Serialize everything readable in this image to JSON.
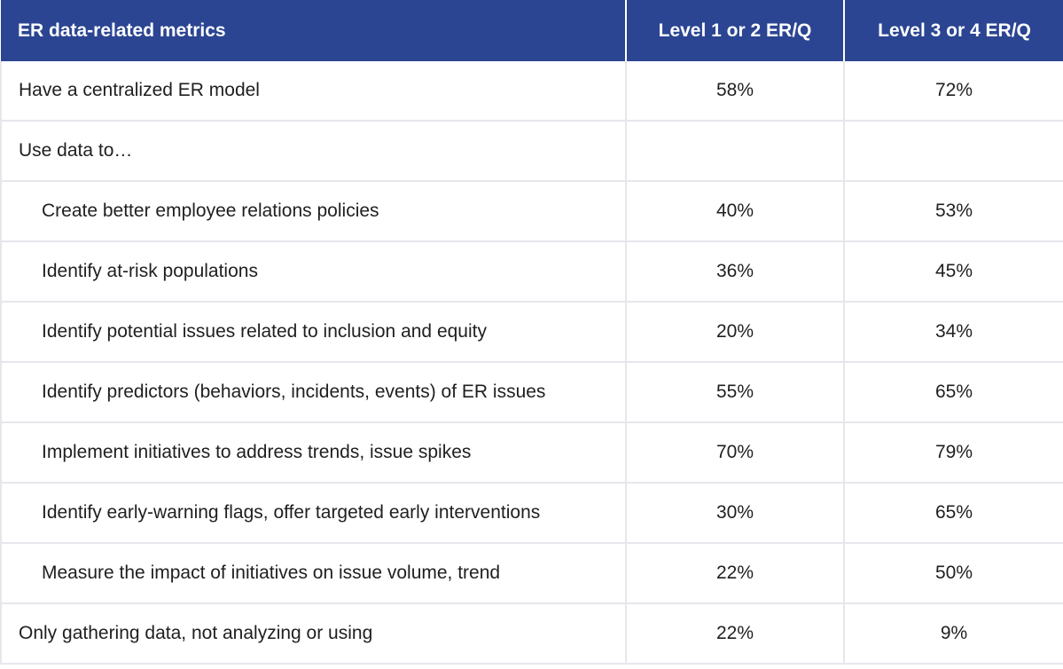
{
  "chart_data": {
    "type": "table",
    "columns": [
      "ER data-related metrics",
      "Level 1 or 2 ER/Q",
      "Level 3 or 4 ER/Q"
    ],
    "rows": [
      {
        "label": "Have a centralized ER model",
        "level12": "58%",
        "level34": "72%",
        "indent": false
      },
      {
        "label": "Use data to…",
        "level12": "",
        "level34": "",
        "indent": false
      },
      {
        "label": "Create better employee relations policies",
        "level12": "40%",
        "level34": "53%",
        "indent": true
      },
      {
        "label": "Identify at-risk populations",
        "level12": "36%",
        "level34": "45%",
        "indent": true
      },
      {
        "label": "Identify potential issues related to inclusion and equity",
        "level12": "20%",
        "level34": "34%",
        "indent": true
      },
      {
        "label": "Identify predictors (behaviors, incidents, events) of ER issues",
        "level12": "55%",
        "level34": "65%",
        "indent": true
      },
      {
        "label": "Implement initiatives to address trends, issue spikes",
        "level12": "70%",
        "level34": "79%",
        "indent": true
      },
      {
        "label": "Identify early-warning flags, offer targeted early interventions",
        "level12": "30%",
        "level34": "65%",
        "indent": true
      },
      {
        "label": "Measure the impact of initiatives on issue volume, trend",
        "level12": "22%",
        "level34": "50%",
        "indent": true
      },
      {
        "label": "Only gathering data, not analyzing or using",
        "level12": "22%",
        "level34": "9%",
        "indent": false
      }
    ],
    "header_color": "#2b4592"
  }
}
